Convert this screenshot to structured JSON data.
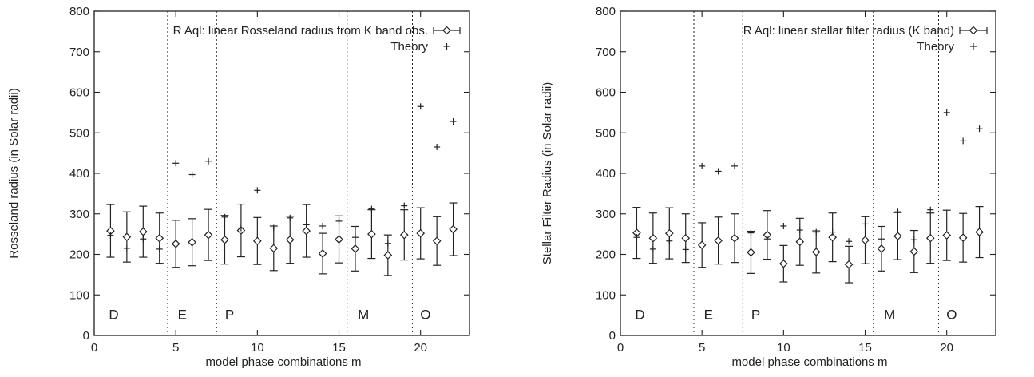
{
  "chart_data": [
    {
      "type": "scatter",
      "xlabel": "model phase combinations m",
      "ylabel": "Rosseland radius (in Solar radii)",
      "xlim": [
        0,
        23
      ],
      "ylim": [
        0,
        800
      ],
      "xticks": [
        0,
        5,
        10,
        15,
        20
      ],
      "yticks": [
        0,
        100,
        200,
        300,
        400,
        500,
        600,
        700,
        800
      ],
      "grid": false,
      "legend_position": "top-right",
      "separators": [
        4.5,
        7.5,
        15.5,
        19.5
      ],
      "regions": [
        {
          "label": "D",
          "x": 1.2
        },
        {
          "label": "E",
          "x": 5.4
        },
        {
          "label": "P",
          "x": 8.3
        },
        {
          "label": "M",
          "x": 16.5
        },
        {
          "label": "O",
          "x": 20.3
        }
      ],
      "series": [
        {
          "name": "R Aql: linear Rosseland radius from K band obs.",
          "marker": "diamond-errorbar",
          "x": [
            1,
            2,
            3,
            4,
            5,
            6,
            7,
            8,
            9,
            10,
            11,
            12,
            13,
            14,
            15,
            16,
            17,
            18,
            19,
            20,
            21,
            22
          ],
          "y": [
            258,
            243,
            256,
            240,
            226,
            230,
            248,
            236,
            259,
            233,
            215,
            236,
            258,
            202,
            237,
            214,
            250,
            198,
            248,
            252,
            233,
            262
          ],
          "err": [
            65,
            62,
            63,
            62,
            58,
            58,
            63,
            60,
            65,
            58,
            55,
            58,
            65,
            50,
            58,
            55,
            60,
            50,
            62,
            63,
            60,
            65
          ]
        },
        {
          "name": "Theory",
          "marker": "plus",
          "x": [
            1,
            2,
            3,
            4,
            5,
            6,
            7,
            8,
            9,
            10,
            11,
            12,
            13,
            14,
            15,
            16,
            17,
            18,
            19,
            20,
            21,
            22
          ],
          "y": [
            247,
            215,
            238,
            213,
            425,
            397,
            430,
            292,
            265,
            358,
            265,
            290,
            273,
            270,
            282,
            242,
            312,
            227,
            320,
            565,
            465,
            528
          ]
        }
      ]
    },
    {
      "type": "scatter",
      "xlabel": "model phase combinations m",
      "ylabel": "Stellar Filter Radius (in Solar radii)",
      "xlim": [
        0,
        23
      ],
      "ylim": [
        0,
        800
      ],
      "xticks": [
        0,
        5,
        10,
        15,
        20
      ],
      "yticks": [
        0,
        100,
        200,
        300,
        400,
        500,
        600,
        700,
        800
      ],
      "grid": false,
      "legend_position": "top-right",
      "separators": [
        4.5,
        7.5,
        15.5,
        19.5
      ],
      "regions": [
        {
          "label": "D",
          "x": 1.2
        },
        {
          "label": "E",
          "x": 5.4
        },
        {
          "label": "P",
          "x": 8.3
        },
        {
          "label": "M",
          "x": 16.5
        },
        {
          "label": "O",
          "x": 20.3
        }
      ],
      "series": [
        {
          "name": "R Aql: linear stellar filter radius (K band)",
          "marker": "diamond-errorbar",
          "x": [
            1,
            2,
            3,
            4,
            5,
            6,
            7,
            8,
            9,
            10,
            11,
            12,
            13,
            14,
            15,
            16,
            17,
            18,
            19,
            20,
            21,
            22
          ],
          "y": [
            253,
            240,
            252,
            240,
            223,
            234,
            240,
            205,
            248,
            177,
            231,
            206,
            242,
            175,
            235,
            214,
            245,
            207,
            240,
            247,
            241,
            255
          ],
          "err": [
            63,
            62,
            63,
            60,
            55,
            58,
            60,
            52,
            60,
            45,
            58,
            52,
            60,
            45,
            58,
            55,
            58,
            52,
            62,
            62,
            60,
            63
          ]
        },
        {
          "name": "Theory",
          "marker": "plus",
          "x": [
            1,
            2,
            3,
            4,
            5,
            6,
            7,
            8,
            9,
            10,
            11,
            12,
            13,
            14,
            15,
            16,
            17,
            18,
            19,
            20,
            21,
            22
          ],
          "y": [
            242,
            213,
            233,
            212,
            418,
            405,
            418,
            253,
            238,
            270,
            260,
            255,
            255,
            232,
            275,
            238,
            305,
            236,
            310,
            550,
            480,
            510
          ]
        }
      ]
    }
  ]
}
